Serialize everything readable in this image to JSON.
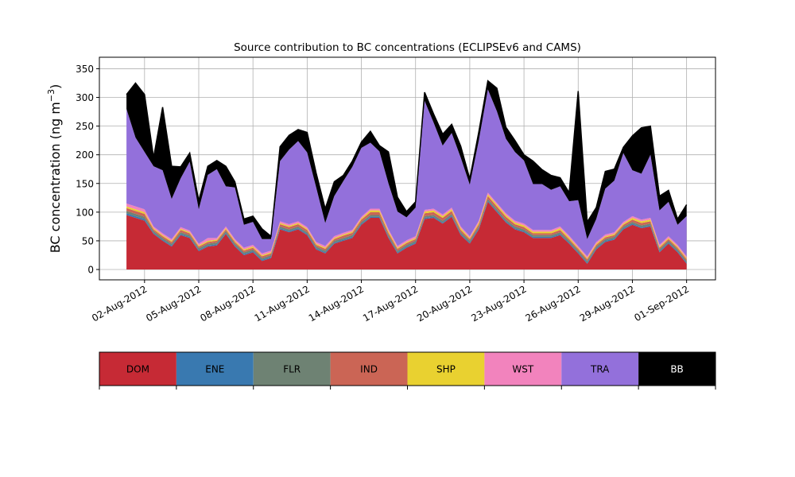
{
  "chart_data": {
    "type": "area",
    "stacked": true,
    "title": "Source contribution to BC concentrations (ECLIPSEv6 and CAMS)",
    "ylabel_text": "BC concentration (ng m",
    "ylabel_exponent": "−3",
    "ylabel_close": ")",
    "xlabel": "",
    "ylim": [
      -18,
      370
    ],
    "yticks": [
      0,
      50,
      100,
      150,
      200,
      250,
      300,
      350
    ],
    "grid": true,
    "xaxis": {
      "start": "2012-07-31",
      "end": "2012-09-01",
      "range_days": [
        -1.5,
        32.6
      ],
      "tick_days": [
        1,
        4,
        7,
        10,
        13,
        16,
        19,
        22,
        25,
        28,
        31
      ],
      "tick_labels": [
        "02-Aug-2012",
        "05-Aug-2012",
        "08-Aug-2012",
        "11-Aug-2012",
        "14-Aug-2012",
        "17-Aug-2012",
        "20-Aug-2012",
        "23-Aug-2012",
        "26-Aug-2012",
        "29-Aug-2012",
        "01-Sep-2012"
      ]
    },
    "x_days": [
      0,
      0.5,
      1,
      1.5,
      2,
      2.5,
      3,
      3.5,
      4,
      4.5,
      5,
      5.5,
      6,
      6.5,
      7,
      7.5,
      8,
      8.5,
      9,
      9.5,
      10,
      10.5,
      11,
      11.5,
      12,
      12.5,
      13,
      13.5,
      14,
      14.5,
      15,
      15.5,
      16,
      16.5,
      17,
      17.5,
      18,
      18.5,
      19,
      19.5,
      20,
      20.5,
      21,
      21.5,
      22,
      22.5,
      23,
      23.5,
      24,
      24.5,
      25,
      25.5,
      26,
      26.5,
      27,
      27.5,
      28,
      28.5,
      29,
      29.5,
      30,
      30.5,
      31
    ],
    "series": [
      {
        "name": "DOM",
        "color": "#c62a35",
        "values": [
          95,
          90,
          85,
          62,
          50,
          40,
          60,
          55,
          32,
          40,
          42,
          62,
          40,
          25,
          30,
          15,
          20,
          70,
          65,
          70,
          60,
          35,
          28,
          45,
          50,
          55,
          78,
          90,
          90,
          55,
          28,
          38,
          45,
          88,
          90,
          80,
          92,
          60,
          45,
          70,
          118,
          100,
          82,
          70,
          65,
          55,
          55,
          55,
          60,
          45,
          28,
          10,
          35,
          48,
          52,
          70,
          78,
          72,
          75,
          30,
          45,
          30,
          10
        ]
      },
      {
        "name": "ENE",
        "color": "#3979b0",
        "values": [
          3,
          3,
          3,
          2,
          2,
          2,
          2,
          2,
          2,
          2,
          2,
          2,
          2,
          2,
          2,
          2,
          2,
          2,
          2,
          2,
          2,
          2,
          2,
          2,
          2,
          2,
          2,
          2,
          2,
          2,
          2,
          2,
          2,
          2,
          2,
          2,
          2,
          2,
          2,
          2,
          2,
          2,
          2,
          2,
          2,
          2,
          2,
          2,
          2,
          2,
          2,
          2,
          2,
          2,
          2,
          2,
          2,
          2,
          2,
          2,
          2,
          2,
          2
        ]
      },
      {
        "name": "FLR",
        "color": "#6e8273",
        "values": [
          4,
          4,
          4,
          3,
          3,
          3,
          3,
          3,
          3,
          3,
          3,
          3,
          3,
          3,
          3,
          3,
          3,
          3,
          3,
          3,
          3,
          3,
          3,
          3,
          3,
          3,
          3,
          3,
          3,
          3,
          3,
          3,
          3,
          3,
          3,
          3,
          3,
          3,
          3,
          3,
          3,
          3,
          3,
          3,
          3,
          3,
          3,
          3,
          3,
          3,
          3,
          3,
          3,
          3,
          3,
          3,
          3,
          3,
          3,
          3,
          3,
          3,
          3
        ]
      },
      {
        "name": "IND",
        "color": "#cb6555",
        "values": [
          5,
          5,
          5,
          3,
          3,
          3,
          4,
          3,
          3,
          3,
          3,
          3,
          3,
          3,
          3,
          3,
          3,
          4,
          4,
          4,
          4,
          3,
          3,
          3,
          4,
          4,
          4,
          5,
          5,
          4,
          3,
          3,
          3,
          5,
          5,
          5,
          5,
          4,
          3,
          4,
          5,
          5,
          5,
          4,
          4,
          3,
          3,
          3,
          4,
          3,
          3,
          3,
          3,
          3,
          3,
          3,
          4,
          4,
          4,
          3,
          3,
          3,
          3
        ]
      },
      {
        "name": "SHP",
        "color": "#e9d130",
        "values": [
          3,
          3,
          3,
          2,
          2,
          2,
          2,
          2,
          2,
          2,
          2,
          2,
          2,
          2,
          2,
          2,
          2,
          2,
          2,
          2,
          2,
          2,
          2,
          2,
          2,
          2,
          2,
          3,
          3,
          3,
          2,
          2,
          2,
          3,
          3,
          3,
          3,
          3,
          2,
          3,
          3,
          3,
          3,
          3,
          3,
          3,
          3,
          3,
          3,
          3,
          2,
          2,
          2,
          2,
          2,
          2,
          3,
          3,
          3,
          2,
          2,
          2,
          2
        ]
      },
      {
        "name": "WST",
        "color": "#f283bd",
        "values": [
          5,
          5,
          5,
          3,
          3,
          3,
          3,
          3,
          3,
          5,
          3,
          3,
          3,
          3,
          3,
          3,
          3,
          3,
          3,
          3,
          3,
          3,
          3,
          3,
          3,
          3,
          3,
          3,
          3,
          3,
          3,
          3,
          3,
          3,
          3,
          3,
          3,
          3,
          3,
          3,
          3,
          3,
          3,
          3,
          3,
          3,
          3,
          3,
          3,
          3,
          3,
          3,
          3,
          3,
          3,
          3,
          3,
          3,
          3,
          3,
          3,
          3,
          3
        ]
      },
      {
        "name": "TRA",
        "color": "#9370db",
        "values": [
          165,
          120,
          100,
          105,
          110,
          70,
          85,
          120,
          60,
          110,
          120,
          70,
          90,
          40,
          40,
          25,
          20,
          105,
          130,
          140,
          130,
          95,
          40,
          70,
          90,
          110,
          120,
          115,
          100,
          80,
          60,
          40,
          50,
          190,
          150,
          120,
          130,
          120,
          90,
          140,
          180,
          160,
          130,
          120,
          110,
          80,
          80,
          70,
          70,
          60,
          80,
          30,
          40,
          80,
          90,
          120,
          80,
          80,
          110,
          60,
          60,
          35,
          70
        ]
      },
      {
        "name": "BB",
        "color": "#000000",
        "values": [
          25,
          95,
          100,
          15,
          110,
          57,
          20,
          15,
          15,
          15,
          15,
          35,
          10,
          10,
          10,
          18,
          5,
          25,
          25,
          20,
          35,
          25,
          25,
          25,
          10,
          10,
          10,
          20,
          10,
          55,
          25,
          10,
          10,
          15,
          15,
          20,
          15,
          20,
          10,
          15,
          15,
          40,
          20,
          20,
          10,
          40,
          25,
          25,
          15,
          15,
          190,
          30,
          20,
          30,
          20,
          10,
          60,
          80,
          50,
          25,
          20,
          10,
          20
        ]
      }
    ],
    "legend_order": [
      "DOM",
      "ENE",
      "FLR",
      "IND",
      "SHP",
      "WST",
      "TRA",
      "BB"
    ]
  }
}
